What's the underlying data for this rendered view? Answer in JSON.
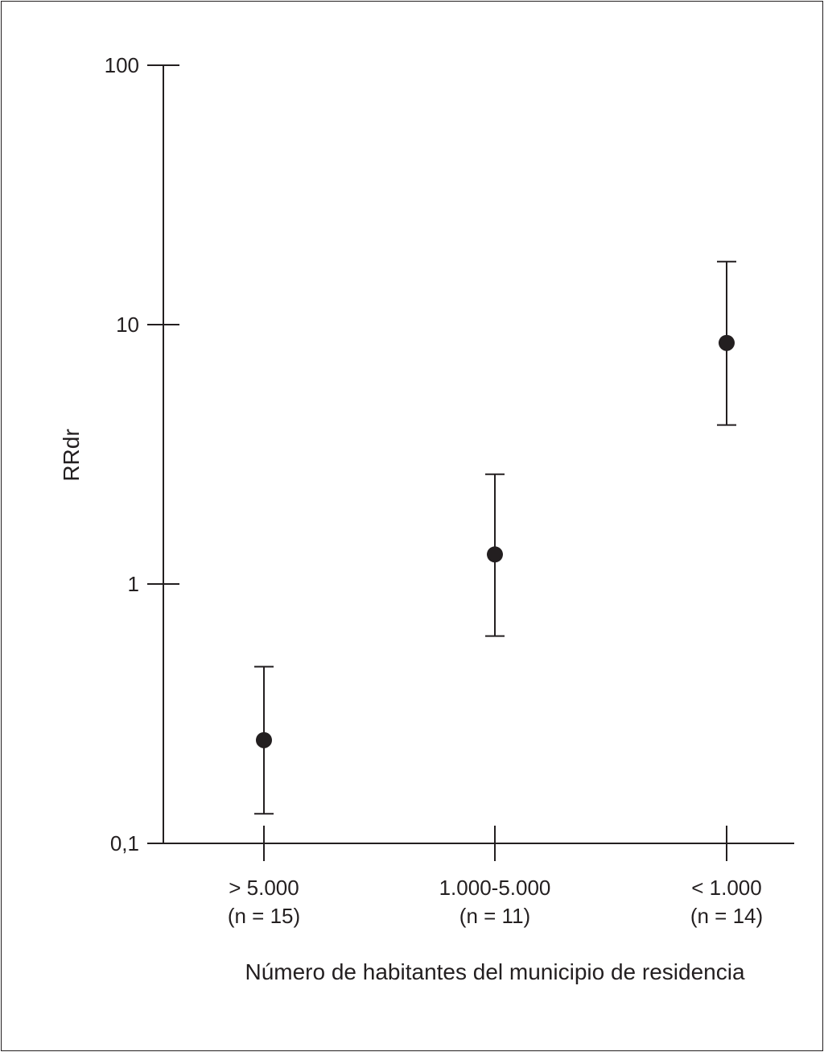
{
  "chart_data": {
    "type": "scatter",
    "subtype": "point-estimate-with-error-bars",
    "xlabel": "Número de habitantes del municipio de residencia",
    "ylabel": "RRdr",
    "yscale": "log",
    "ylim": [
      0.1,
      100
    ],
    "yticks": [
      {
        "value": 0.1,
        "label": "0,1"
      },
      {
        "value": 1,
        "label": "1"
      },
      {
        "value": 10,
        "label": "10"
      },
      {
        "value": 100,
        "label": "100"
      }
    ],
    "categories": [
      {
        "label": "> 5.000",
        "sublabel": "(n = 15)"
      },
      {
        "label": "1.000-5.000",
        "sublabel": "(n = 11)"
      },
      {
        "label": "< 1.000",
        "sublabel": "(n = 14)"
      }
    ],
    "points": [
      {
        "estimate": 0.25,
        "lower": 0.13,
        "upper": 0.48
      },
      {
        "estimate": 1.3,
        "lower": 0.63,
        "upper": 2.65
      },
      {
        "estimate": 8.5,
        "lower": 4.1,
        "upper": 17.5
      }
    ],
    "grid": false,
    "legend": "none",
    "color": "#231f20"
  }
}
